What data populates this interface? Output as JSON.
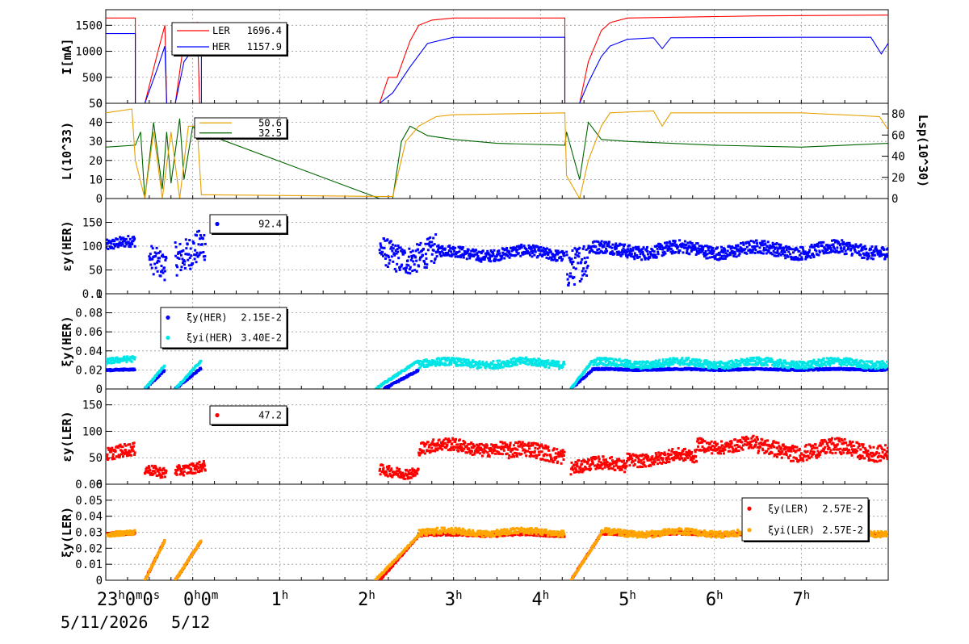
{
  "colors": {
    "ler": "#ff0000",
    "her": "#0000ff",
    "lumi": "#006400",
    "lsp": "#e6a000",
    "xiyi_her": "#00e5e5",
    "xiyi_ler": "#ffa500",
    "grid": "#999999"
  },
  "time_axis": {
    "labels": [
      {
        "h": -1,
        "text": "23",
        "sup": "h",
        "rest": "0",
        "sup2": "m",
        "rest2": "0",
        "sup3": "s"
      },
      {
        "h": 0,
        "text": "0",
        "sup": "h",
        "rest": "0",
        "sup2": "m"
      },
      {
        "h": 1,
        "text": "1",
        "sup": "h"
      },
      {
        "h": 2,
        "text": "2",
        "sup": "h"
      },
      {
        "h": 3,
        "text": "3",
        "sup": "h"
      },
      {
        "h": 4,
        "text": "4",
        "sup": "h"
      },
      {
        "h": 5,
        "text": "5",
        "sup": "h"
      },
      {
        "h": 6,
        "text": "6",
        "sup": "h"
      },
      {
        "h": 7,
        "text": "7",
        "sup": "h"
      }
    ],
    "date_start": "5/11/2026",
    "date_next": "5/12"
  },
  "chart_data": [
    {
      "type": "line",
      "id": "current",
      "ylabel": "I[mA]",
      "ylim": [
        0,
        1800
      ],
      "yticks": [
        "0",
        "500",
        "1000",
        "1500"
      ],
      "legend": [
        {
          "name": "LER",
          "value": "1696.4",
          "color": "#ff0000"
        },
        {
          "name": "HER",
          "value": "1157.9",
          "color": "#0000ff"
        }
      ],
      "series": [
        {
          "name": "LER",
          "points": [
            [
              -1,
              1640
            ],
            [
              -0.66,
              1640
            ],
            [
              -0.66,
              0
            ],
            [
              -0.55,
              0
            ],
            [
              -0.4,
              1000
            ],
            [
              -0.32,
              1500
            ],
            [
              -0.3,
              0
            ],
            [
              -0.2,
              0
            ],
            [
              -0.1,
              1200
            ],
            [
              0.05,
              1550
            ],
            [
              0.08,
              0
            ],
            [
              2.15,
              0
            ],
            [
              2.25,
              500
            ],
            [
              2.35,
              500
            ],
            [
              2.5,
              1200
            ],
            [
              2.6,
              1500
            ],
            [
              2.75,
              1600
            ],
            [
              3.0,
              1640
            ],
            [
              4.28,
              1640
            ],
            [
              4.28,
              0
            ],
            [
              4.45,
              0
            ],
            [
              4.55,
              800
            ],
            [
              4.7,
              1400
            ],
            [
              4.8,
              1550
            ],
            [
              5.0,
              1640
            ],
            [
              6.5,
              1680
            ],
            [
              8.0,
              1696
            ]
          ]
        },
        {
          "name": "HER",
          "points": [
            [
              -1,
              1340
            ],
            [
              -0.66,
              1340
            ],
            [
              -0.66,
              0
            ],
            [
              -0.55,
              0
            ],
            [
              -0.4,
              700
            ],
            [
              -0.32,
              1100
            ],
            [
              -0.3,
              0
            ],
            [
              -0.2,
              0
            ],
            [
              -0.1,
              800
            ],
            [
              0.05,
              1150
            ],
            [
              0.1,
              1150
            ],
            [
              0.1,
              0
            ],
            [
              2.15,
              0
            ],
            [
              2.3,
              200
            ],
            [
              2.5,
              700
            ],
            [
              2.7,
              1150
            ],
            [
              2.9,
              1230
            ],
            [
              3.0,
              1270
            ],
            [
              4.28,
              1270
            ],
            [
              4.28,
              0
            ],
            [
              4.45,
              0
            ],
            [
              4.55,
              400
            ],
            [
              4.7,
              900
            ],
            [
              4.8,
              1100
            ],
            [
              5.0,
              1230
            ],
            [
              5.3,
              1260
            ],
            [
              5.4,
              1050
            ],
            [
              5.5,
              1260
            ],
            [
              7.0,
              1270
            ],
            [
              7.8,
              1270
            ],
            [
              7.92,
              950
            ],
            [
              8.0,
              1158
            ]
          ]
        }
      ]
    },
    {
      "type": "line",
      "id": "luminosity",
      "ylabel": "L(10^33)",
      "ylabel_right": "Lsp(10^30)",
      "ylim": [
        0,
        50
      ],
      "yticks": [
        "0",
        "10",
        "20",
        "30",
        "40",
        "50"
      ],
      "yticks_right": [
        "0",
        "20",
        "40",
        "60",
        "80"
      ],
      "legend": [
        {
          "name": "",
          "value": "50.6",
          "color": "#e6a000"
        },
        {
          "name": "",
          "value": "32.5",
          "color": "#006400"
        }
      ],
      "series": [
        {
          "name": "L",
          "points": [
            [
              -1,
              27
            ],
            [
              -0.66,
              28
            ],
            [
              -0.6,
              35
            ],
            [
              -0.55,
              0
            ],
            [
              -0.45,
              40
            ],
            [
              -0.35,
              5
            ],
            [
              -0.3,
              35
            ],
            [
              -0.25,
              8
            ],
            [
              -0.15,
              42
            ],
            [
              -0.1,
              10
            ],
            [
              0.0,
              38
            ],
            [
              0.05,
              35
            ],
            [
              0.15,
              34
            ],
            [
              2.15,
              0
            ],
            [
              2.3,
              0
            ],
            [
              2.4,
              30
            ],
            [
              2.5,
              38
            ],
            [
              2.7,
              33
            ],
            [
              3.0,
              31
            ],
            [
              3.5,
              29
            ],
            [
              4.28,
              28
            ],
            [
              4.3,
              35
            ],
            [
              4.45,
              10
            ],
            [
              4.55,
              40
            ],
            [
              4.7,
              31
            ],
            [
              5.0,
              30
            ],
            [
              6.0,
              28
            ],
            [
              7.0,
              27
            ],
            [
              8.0,
              29
            ]
          ]
        },
        {
          "name": "Lsp",
          "points": [
            [
              -1,
              45
            ],
            [
              -0.7,
              47
            ],
            [
              -0.66,
              20
            ],
            [
              -0.55,
              0
            ],
            [
              -0.45,
              35
            ],
            [
              -0.35,
              0
            ],
            [
              -0.25,
              35
            ],
            [
              -0.15,
              0
            ],
            [
              -0.05,
              38
            ],
            [
              0.05,
              38
            ],
            [
              0.1,
              2
            ],
            [
              2.3,
              1
            ],
            [
              2.45,
              30
            ],
            [
              2.6,
              38
            ],
            [
              2.8,
              43
            ],
            [
              3.0,
              44
            ],
            [
              4.28,
              45
            ],
            [
              4.3,
              12
            ],
            [
              4.45,
              0
            ],
            [
              4.55,
              20
            ],
            [
              4.7,
              38
            ],
            [
              4.8,
              45
            ],
            [
              5.3,
              46
            ],
            [
              5.4,
              38
            ],
            [
              5.5,
              45
            ],
            [
              7.0,
              45
            ],
            [
              7.9,
              43
            ],
            [
              8.0,
              36
            ]
          ]
        }
      ]
    },
    {
      "type": "scatter",
      "id": "emit_her",
      "ylabel": "εy(HER)",
      "ylim": [
        0,
        200
      ],
      "yticks": [
        "0",
        "50",
        "100",
        "150"
      ],
      "legend": [
        {
          "name": "",
          "value": "92.4",
          "color": "#0000ff"
        }
      ],
      "series": [
        {
          "name": "HER",
          "color": "#0000ff",
          "segments": [
            [
              -1,
              -0.66,
              105,
              12
            ],
            [
              -0.5,
              -0.3,
              70,
              30
            ],
            [
              -0.2,
              0.15,
              90,
              35
            ],
            [
              2.15,
              2.8,
              85,
              30
            ],
            [
              2.8,
              4.28,
              85,
              12
            ],
            [
              4.3,
              4.55,
              70,
              40
            ],
            [
              4.55,
              8.0,
              92,
              14
            ]
          ]
        }
      ]
    },
    {
      "type": "scatter",
      "id": "tune_her",
      "ylabel": "ξy(HER)",
      "ylim": [
        0,
        0.1
      ],
      "yticks": [
        "0",
        "0.02",
        "0.04",
        "0.06",
        "0.08",
        "0.1"
      ],
      "legend": [
        {
          "name": "ξy(HER)",
          "value": "2.15E-2",
          "color": "#0000ff"
        },
        {
          "name": "ξyi(HER)",
          "value": "3.40E-2",
          "color": "#00e5e5"
        }
      ],
      "series": [
        {
          "name": "ξy(HER)",
          "color": "#0000ff",
          "segments": [
            [
              -1,
              -0.66,
              0.02,
              0.001
            ],
            [
              4.6,
              8.0,
              0.0205,
              0.001
            ]
          ],
          "ramps": [
            [
              -0.55,
              -0.32,
              0,
              0.02
            ],
            [
              -0.2,
              0.1,
              0,
              0.022
            ],
            [
              2.2,
              2.6,
              0,
              0.02
            ],
            [
              4.35,
              4.6,
              0,
              0.02
            ]
          ]
        },
        {
          "name": "ξyi(HER)",
          "color": "#00e5e5",
          "segments": [
            [
              -1,
              -0.66,
              0.03,
              0.003
            ],
            [
              2.6,
              4.28,
              0.027,
              0.004
            ],
            [
              4.6,
              8.0,
              0.027,
              0.004
            ]
          ],
          "ramps": [
            [
              -0.55,
              -0.32,
              0,
              0.025
            ],
            [
              -0.2,
              0.1,
              0,
              0.03
            ],
            [
              2.1,
              2.6,
              0,
              0.03
            ],
            [
              4.35,
              4.6,
              0,
              0.03
            ]
          ]
        }
      ]
    },
    {
      "type": "scatter",
      "id": "emit_ler",
      "ylabel": "εy(LER)",
      "ylim": [
        0,
        180
      ],
      "yticks": [
        "0",
        "50",
        "100",
        "150"
      ],
      "legend": [
        {
          "name": "",
          "value": "47.2",
          "color": "#ff0000"
        }
      ],
      "series": [
        {
          "name": "LER",
          "color": "#ff0000",
          "segments": [
            [
              -1,
              -0.66,
              60,
              12
            ],
            [
              -0.55,
              -0.3,
              25,
              10
            ],
            [
              -0.2,
              0.15,
              30,
              10
            ],
            [
              2.15,
              2.6,
              25,
              10
            ],
            [
              2.6,
              3.6,
              70,
              12
            ],
            [
              3.6,
              4.28,
              60,
              15
            ],
            [
              4.35,
              5.0,
              35,
              12
            ],
            [
              5.0,
              5.8,
              50,
              12
            ],
            [
              5.8,
              6.5,
              75,
              12
            ],
            [
              6.5,
              8.0,
              65,
              15
            ]
          ]
        }
      ]
    },
    {
      "type": "scatter",
      "id": "tune_ler",
      "ylabel": "ξy(LER)",
      "ylim": [
        0,
        0.06
      ],
      "yticks": [
        "0",
        "0.01",
        "0.02",
        "0.03",
        "0.04",
        "0.05",
        "0.06"
      ],
      "legend": [
        {
          "name": "ξy(LER)",
          "value": "2.57E-2",
          "color": "#ff0000"
        },
        {
          "name": "ξyi(LER)",
          "value": "2.57E-2",
          "color": "#ffa500"
        }
      ],
      "series": [
        {
          "name": "ξy(LER)",
          "color": "#ff0000",
          "segments": [
            [
              -1,
              -0.66,
              0.029,
              0.001
            ],
            [
              2.6,
              4.28,
              0.0285,
              0.001
            ],
            [
              4.7,
              8.0,
              0.029,
              0.001
            ]
          ],
          "ramps": [
            [
              -0.55,
              -0.32,
              0,
              0.025
            ],
            [
              -0.2,
              0.1,
              0,
              0.025
            ],
            [
              2.15,
              2.6,
              0,
              0.028
            ],
            [
              4.35,
              4.7,
              0,
              0.029
            ]
          ]
        },
        {
          "name": "ξyi(LER)",
          "color": "#ffa500",
          "segments": [
            [
              -1,
              -0.66,
              0.029,
              0.0015
            ],
            [
              2.6,
              4.28,
              0.03,
              0.002
            ],
            [
              4.7,
              8.0,
              0.0295,
              0.002
            ]
          ],
          "ramps": [
            [
              -0.55,
              -0.32,
              0,
              0.025
            ],
            [
              -0.2,
              0.1,
              0,
              0.025
            ],
            [
              2.1,
              2.6,
              0,
              0.028
            ],
            [
              4.35,
              4.7,
              0,
              0.029
            ]
          ]
        }
      ]
    }
  ]
}
